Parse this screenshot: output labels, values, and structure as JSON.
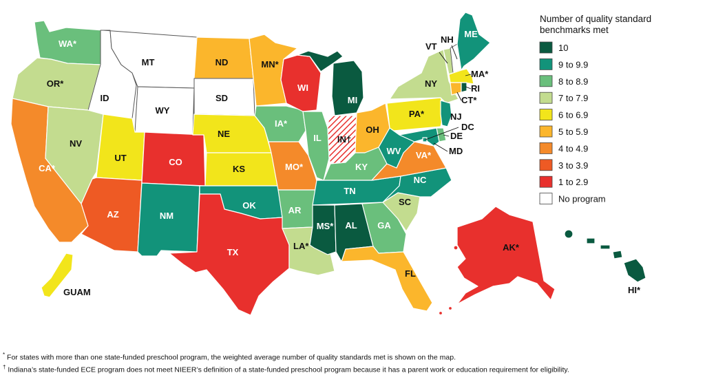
{
  "legend": {
    "title_line1": "Number of quality standard",
    "title_line2": "benchmarks met",
    "items": [
      {
        "label": "10",
        "color": "#0a5a40"
      },
      {
        "label": "9 to 9.9",
        "color": "#12937a"
      },
      {
        "label": "8 to 8.9",
        "color": "#6abf7c"
      },
      {
        "label": "7 to 7.9",
        "color": "#c3dc8f"
      },
      {
        "label": "6 to 6.9",
        "color": "#f2e51b"
      },
      {
        "label": "5 to 5.9",
        "color": "#fbb62c"
      },
      {
        "label": "4 to 4.9",
        "color": "#f48a2a"
      },
      {
        "label": "3 to 3.9",
        "color": "#ee5a24"
      },
      {
        "label": "1 to 2.9",
        "color": "#e8302d"
      },
      {
        "label": "No program",
        "color": "#ffffff"
      }
    ]
  },
  "states": {
    "WA": {
      "label": "WA*",
      "tier": 2
    },
    "OR": {
      "label": "OR*",
      "tier": 3
    },
    "CA": {
      "label": "CA*",
      "tier": 6
    },
    "ID": {
      "label": "ID",
      "tier": 9
    },
    "NV": {
      "label": "NV",
      "tier": 3
    },
    "MT": {
      "label": "MT",
      "tier": 9
    },
    "WY": {
      "label": "WY",
      "tier": 9
    },
    "UT": {
      "label": "UT",
      "tier": 4
    },
    "AZ": {
      "label": "AZ",
      "tier": 7
    },
    "CO": {
      "label": "CO",
      "tier": 8
    },
    "NM": {
      "label": "NM",
      "tier": 1
    },
    "ND": {
      "label": "ND",
      "tier": 5
    },
    "SD": {
      "label": "SD",
      "tier": 9
    },
    "NE": {
      "label": "NE",
      "tier": 4
    },
    "KS": {
      "label": "KS",
      "tier": 4
    },
    "OK": {
      "label": "OK",
      "tier": 1
    },
    "TX": {
      "label": "TX",
      "tier": 8
    },
    "MN": {
      "label": "MN*",
      "tier": 5
    },
    "IA": {
      "label": "IA*",
      "tier": 2
    },
    "MO": {
      "label": "MO*",
      "tier": 6
    },
    "AR": {
      "label": "AR",
      "tier": 2
    },
    "LA": {
      "label": "LA*",
      "tier": 3
    },
    "WI": {
      "label": "WI",
      "tier": 8
    },
    "IL": {
      "label": "IL",
      "tier": 2
    },
    "MI": {
      "label": "MI",
      "tier": 0
    },
    "IN": {
      "label": "IN†",
      "tier": -1
    },
    "OH": {
      "label": "OH",
      "tier": 5
    },
    "KY": {
      "label": "KY",
      "tier": 2
    },
    "TN": {
      "label": "TN",
      "tier": 1
    },
    "MS": {
      "label": "MS*",
      "tier": 0
    },
    "AL": {
      "label": "AL",
      "tier": 0
    },
    "GA": {
      "label": "GA",
      "tier": 2
    },
    "FL": {
      "label": "FL",
      "tier": 5
    },
    "SC": {
      "label": "SC",
      "tier": 3
    },
    "NC": {
      "label": "NC",
      "tier": 1
    },
    "VA": {
      "label": "VA*",
      "tier": 6
    },
    "WV": {
      "label": "WV",
      "tier": 1
    },
    "PA": {
      "label": "PA*",
      "tier": 4
    },
    "NY": {
      "label": "NY",
      "tier": 3
    },
    "VT": {
      "label": "VT",
      "tier": 3
    },
    "NH": {
      "label": "NH",
      "tier": 9
    },
    "ME": {
      "label": "ME",
      "tier": 1
    },
    "MA": {
      "label": "MA*",
      "tier": 4
    },
    "RI": {
      "label": "RI",
      "tier": 0
    },
    "CT": {
      "label": "CT*",
      "tier": 5
    },
    "NJ": {
      "label": "NJ",
      "tier": 1
    },
    "DE": {
      "label": "DE",
      "tier": 2
    },
    "MD": {
      "label": "MD",
      "tier": 1
    },
    "DC": {
      "label": "DC",
      "tier": 1
    },
    "AK": {
      "label": "AK*",
      "tier": 8
    },
    "HI": {
      "label": "HI*",
      "tier": 0
    },
    "GU": {
      "label": "GUAM",
      "tier": 4
    }
  },
  "footnotes": {
    "asterisk_mark": "*",
    "asterisk_text": "For states with more than one state-funded preschool program, the weighted average number of quality standards met is shown on the map.",
    "dagger_mark": "†",
    "dagger_text": "Indiana’s state-funded ECE program does not meet NIEER’s definition of a state-funded preschool program because it has a parent work or education requirement for eligibility."
  }
}
